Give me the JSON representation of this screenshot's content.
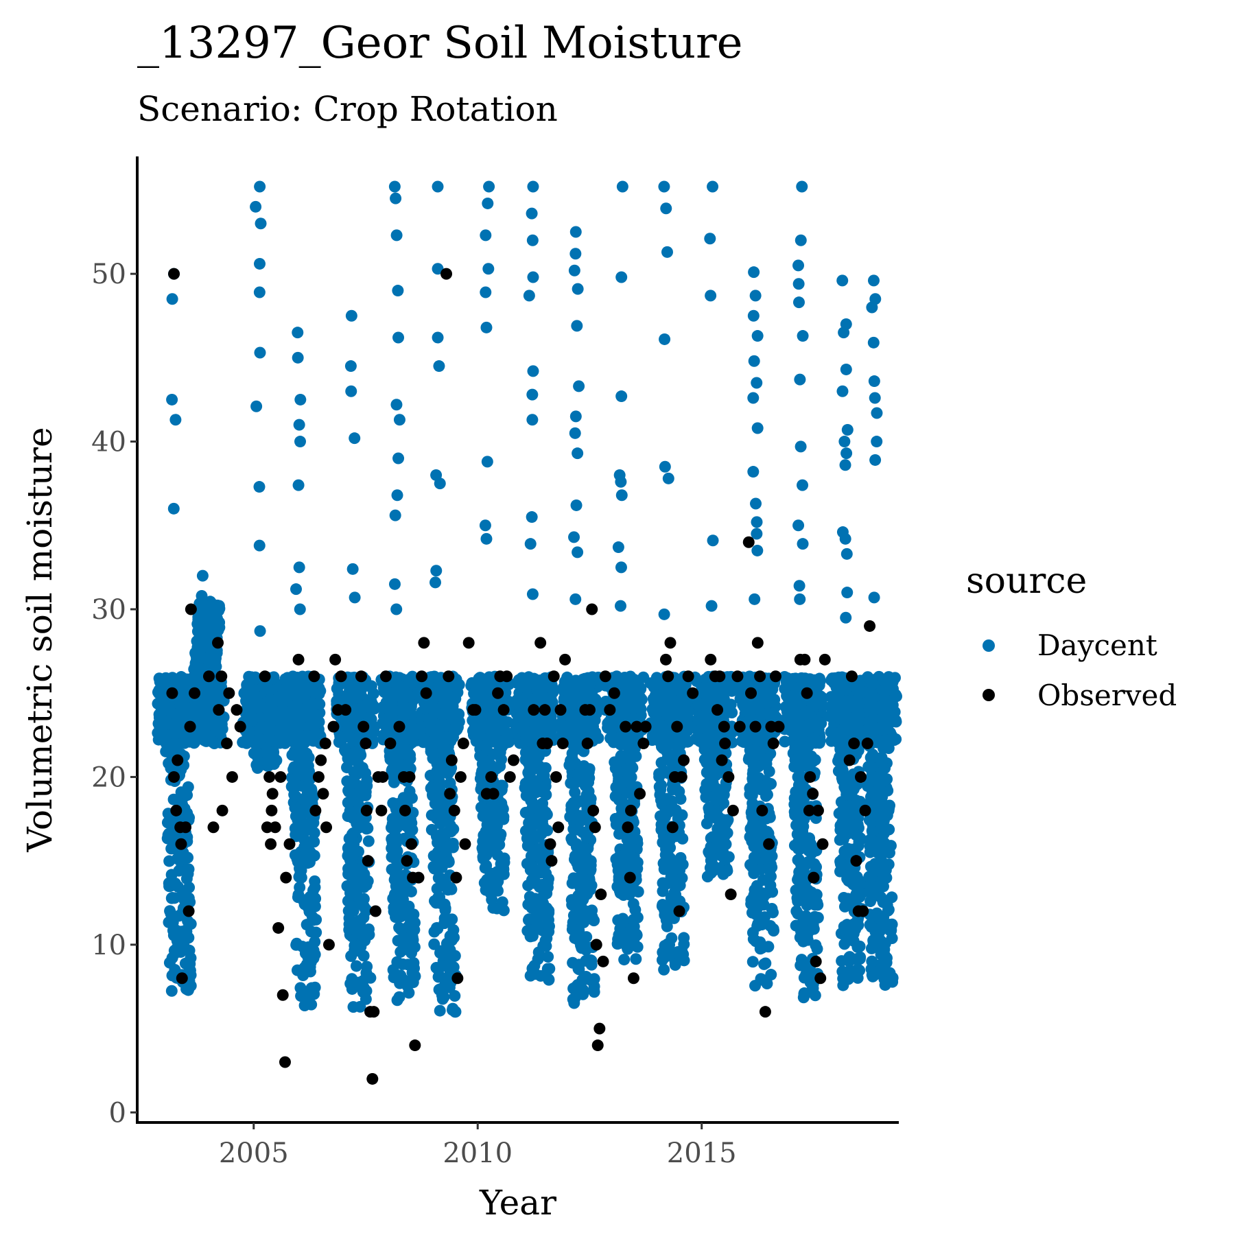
{
  "chart_data": {
    "type": "scatter",
    "title": "_13297_Geor Soil Moisture",
    "subtitle": "Scenario: Crop Rotation",
    "xlabel": "Year",
    "ylabel": "Volumetric soil moisture",
    "xlim": [
      2002.4,
      2019.4
    ],
    "ylim": [
      -0.6,
      57
    ],
    "x_ticks": [
      2005,
      2010,
      2015
    ],
    "y_ticks": [
      0,
      10,
      20,
      30,
      40,
      50
    ],
    "grid": false,
    "legend": {
      "title": "source",
      "position": "right"
    },
    "series": [
      {
        "name": "Daycent",
        "color": "#0072B2",
        "seasons": [
          {
            "year": 2003.2,
            "min": 7,
            "max": 50,
            "peaks": [
              50,
              48.5,
              42.5,
              41.3,
              36
            ]
          },
          {
            "year": 2003.85,
            "min": 30.5,
            "max": 32,
            "peaks": [
              32,
              30.8
            ]
          },
          {
            "year": 2005.1,
            "min": 20.5,
            "max": 55.2,
            "peaks": [
              55.2,
              54,
              53,
              50.6,
              48.9,
              45.3,
              42.1,
              37.3,
              33.8,
              28.7
            ]
          },
          {
            "year": 2006.0,
            "min": 6,
            "max": 46.5,
            "peaks": [
              46.5,
              45,
              42.5,
              41,
              40,
              37.4,
              32.5,
              31.2,
              30
            ]
          },
          {
            "year": 2007.2,
            "min": 6,
            "max": 47.5,
            "peaks": [
              47.5,
              44.5,
              43,
              40.2,
              32.4,
              30.7
            ]
          },
          {
            "year": 2008.2,
            "min": 6.5,
            "max": 55.2,
            "peaks": [
              55.2,
              54.5,
              52.3,
              49,
              46.2,
              42.2,
              41.3,
              39,
              36.8,
              35.6,
              31.5,
              30
            ]
          },
          {
            "year": 2009.1,
            "min": 5.8,
            "max": 55.2,
            "peaks": [
              55.2,
              50.3,
              46.2,
              44.5,
              38,
              37.5,
              32.3,
              31.6
            ]
          },
          {
            "year": 2010.2,
            "min": 12,
            "max": 55.2,
            "peaks": [
              55.2,
              54.2,
              52.3,
              50.3,
              48.9,
              46.8,
              38.8,
              35,
              34.2
            ]
          },
          {
            "year": 2011.2,
            "min": 7.5,
            "max": 55.2,
            "peaks": [
              55.2,
              53.6,
              52,
              49.8,
              48.7,
              44.2,
              42.8,
              41.3,
              35.5,
              33.9,
              30.9
            ]
          },
          {
            "year": 2012.2,
            "min": 6,
            "max": 52.5,
            "peaks": [
              52.5,
              51.2,
              50.2,
              49.1,
              46.9,
              43.3,
              41.5,
              40.5,
              39.3,
              36.2,
              34.3,
              33.4,
              30.6
            ]
          },
          {
            "year": 2013.2,
            "min": 9,
            "max": 55.2,
            "peaks": [
              55.2,
              49.8,
              42.7,
              38,
              37.6,
              36.8,
              33.7,
              32.5,
              30.2
            ]
          },
          {
            "year": 2014.2,
            "min": 8.5,
            "max": 55.2,
            "peaks": [
              55.2,
              53.9,
              51.3,
              46.1,
              38.5,
              37.8,
              29.7
            ]
          },
          {
            "year": 2015.2,
            "min": 14,
            "max": 55.2,
            "peaks": [
              55.2,
              52.1,
              48.7,
              34.1,
              30.2
            ]
          },
          {
            "year": 2016.2,
            "min": 7.5,
            "max": 50.1,
            "peaks": [
              50.1,
              48.7,
              47.5,
              46.3,
              44.8,
              43.5,
              42.6,
              40.8,
              38.2,
              36.3,
              35.2,
              34.5,
              33.5,
              30.6
            ]
          },
          {
            "year": 2017.2,
            "min": 6.8,
            "max": 55.2,
            "peaks": [
              55.2,
              52,
              50.5,
              49.4,
              48.3,
              46.3,
              43.7,
              39.7,
              37.4,
              35,
              33.9,
              31.4,
              30.6
            ]
          },
          {
            "year": 2018.2,
            "min": 7.5,
            "max": 49.6,
            "peaks": [
              49.6,
              47,
              46.5,
              44.3,
              43,
              40.7,
              40,
              39.3,
              38.6,
              34.6,
              34.2,
              33.3,
              31,
              29.5
            ]
          },
          {
            "year": 2018.85,
            "min": 7.5,
            "max": 49.6,
            "peaks": [
              49.6,
              48.5,
              48,
              45.9,
              43.6,
              42.6,
              41.7,
              40,
              38.9,
              30.7
            ]
          }
        ]
      },
      {
        "name": "Observed",
        "color": "#000000",
        "points": [
          [
            2003.22,
            50
          ],
          [
            2003.18,
            25
          ],
          [
            2003.22,
            20
          ],
          [
            2003.27,
            18
          ],
          [
            2003.3,
            21
          ],
          [
            2003.36,
            17
          ],
          [
            2003.38,
            16
          ],
          [
            2003.4,
            8
          ],
          [
            2003.48,
            17
          ],
          [
            2003.55,
            12
          ],
          [
            2003.58,
            23
          ],
          [
            2003.6,
            30
          ],
          [
            2003.68,
            25
          ],
          [
            2004.0,
            26
          ],
          [
            2004.1,
            17
          ],
          [
            2004.2,
            28
          ],
          [
            2004.22,
            24
          ],
          [
            2004.28,
            26
          ],
          [
            2004.3,
            18
          ],
          [
            2004.4,
            22
          ],
          [
            2004.45,
            25
          ],
          [
            2004.52,
            20
          ],
          [
            2004.62,
            24
          ],
          [
            2004.7,
            23
          ],
          [
            2005.25,
            26
          ],
          [
            2005.3,
            17
          ],
          [
            2005.35,
            20
          ],
          [
            2005.38,
            16
          ],
          [
            2005.4,
            18
          ],
          [
            2005.42,
            19
          ],
          [
            2005.48,
            17
          ],
          [
            2005.55,
            11
          ],
          [
            2005.6,
            20
          ],
          [
            2005.65,
            7
          ],
          [
            2005.7,
            3
          ],
          [
            2005.72,
            14
          ],
          [
            2005.8,
            16
          ],
          [
            2006.0,
            27
          ],
          [
            2006.35,
            26
          ],
          [
            2006.38,
            18
          ],
          [
            2006.45,
            20
          ],
          [
            2006.5,
            21
          ],
          [
            2006.55,
            19
          ],
          [
            2006.6,
            22
          ],
          [
            2006.62,
            17
          ],
          [
            2006.68,
            10
          ],
          [
            2006.78,
            23
          ],
          [
            2006.82,
            27
          ],
          [
            2006.88,
            24
          ],
          [
            2006.95,
            26
          ],
          [
            2007.05,
            24
          ],
          [
            2007.4,
            26
          ],
          [
            2007.45,
            23
          ],
          [
            2007.5,
            22
          ],
          [
            2007.52,
            18
          ],
          [
            2007.55,
            15
          ],
          [
            2007.6,
            6
          ],
          [
            2007.65,
            2
          ],
          [
            2007.68,
            6
          ],
          [
            2007.72,
            12
          ],
          [
            2007.78,
            20
          ],
          [
            2007.85,
            18
          ],
          [
            2007.88,
            20
          ],
          [
            2007.95,
            26
          ],
          [
            2008.05,
            22
          ],
          [
            2008.25,
            23
          ],
          [
            2008.35,
            20
          ],
          [
            2008.38,
            18
          ],
          [
            2008.42,
            15
          ],
          [
            2008.48,
            20
          ],
          [
            2008.52,
            16
          ],
          [
            2008.55,
            14
          ],
          [
            2008.6,
            4
          ],
          [
            2008.68,
            14
          ],
          [
            2008.75,
            26
          ],
          [
            2008.8,
            28
          ],
          [
            2008.85,
            25
          ],
          [
            2009.3,
            50
          ],
          [
            2009.35,
            26
          ],
          [
            2009.38,
            19
          ],
          [
            2009.42,
            21
          ],
          [
            2009.48,
            18
          ],
          [
            2009.52,
            14
          ],
          [
            2009.55,
            8
          ],
          [
            2009.62,
            20
          ],
          [
            2009.68,
            22
          ],
          [
            2009.72,
            16
          ],
          [
            2009.8,
            28
          ],
          [
            2009.9,
            24
          ],
          [
            2009.95,
            24
          ],
          [
            2010.2,
            19
          ],
          [
            2010.3,
            20
          ],
          [
            2010.35,
            19
          ],
          [
            2010.45,
            25
          ],
          [
            2010.5,
            26
          ],
          [
            2010.58,
            24
          ],
          [
            2010.65,
            26
          ],
          [
            2010.72,
            20
          ],
          [
            2010.8,
            21
          ],
          [
            2011.25,
            24
          ],
          [
            2011.4,
            28
          ],
          [
            2011.45,
            22
          ],
          [
            2011.5,
            24
          ],
          [
            2011.55,
            22
          ],
          [
            2011.62,
            16
          ],
          [
            2011.65,
            15
          ],
          [
            2011.7,
            26
          ],
          [
            2011.75,
            20
          ],
          [
            2011.8,
            17
          ],
          [
            2011.85,
            24
          ],
          [
            2011.9,
            22
          ],
          [
            2011.95,
            27
          ],
          [
            2012.4,
            24
          ],
          [
            2012.45,
            22
          ],
          [
            2012.5,
            24
          ],
          [
            2012.55,
            30
          ],
          [
            2012.58,
            18
          ],
          [
            2012.62,
            17
          ],
          [
            2012.65,
            10
          ],
          [
            2012.68,
            4
          ],
          [
            2012.72,
            5
          ],
          [
            2012.75,
            13
          ],
          [
            2012.8,
            9
          ],
          [
            2012.85,
            26
          ],
          [
            2012.95,
            24
          ],
          [
            2013.05,
            25
          ],
          [
            2013.3,
            23
          ],
          [
            2013.35,
            17
          ],
          [
            2013.4,
            14
          ],
          [
            2013.42,
            18
          ],
          [
            2013.48,
            8
          ],
          [
            2013.55,
            23
          ],
          [
            2013.62,
            19
          ],
          [
            2013.7,
            22
          ],
          [
            2013.75,
            23
          ],
          [
            2014.2,
            27
          ],
          [
            2014.25,
            26
          ],
          [
            2014.3,
            28
          ],
          [
            2014.35,
            17
          ],
          [
            2014.4,
            20
          ],
          [
            2014.45,
            23
          ],
          [
            2014.5,
            12
          ],
          [
            2014.55,
            20
          ],
          [
            2014.6,
            21
          ],
          [
            2014.7,
            26
          ],
          [
            2014.8,
            25
          ],
          [
            2015.2,
            27
          ],
          [
            2015.3,
            26
          ],
          [
            2015.35,
            24
          ],
          [
            2015.4,
            26
          ],
          [
            2015.45,
            21
          ],
          [
            2015.5,
            23
          ],
          [
            2015.52,
            22
          ],
          [
            2015.6,
            20
          ],
          [
            2015.65,
            13
          ],
          [
            2015.7,
            18
          ],
          [
            2015.8,
            26
          ],
          [
            2015.85,
            23
          ],
          [
            2016.05,
            34
          ],
          [
            2016.1,
            25
          ],
          [
            2016.2,
            23
          ],
          [
            2016.25,
            28
          ],
          [
            2016.3,
            26
          ],
          [
            2016.35,
            18
          ],
          [
            2016.42,
            6
          ],
          [
            2016.5,
            16
          ],
          [
            2016.55,
            23
          ],
          [
            2016.6,
            22
          ],
          [
            2016.65,
            26
          ],
          [
            2016.72,
            23
          ],
          [
            2017.2,
            27
          ],
          [
            2017.3,
            27
          ],
          [
            2017.35,
            25
          ],
          [
            2017.4,
            18
          ],
          [
            2017.42,
            20
          ],
          [
            2017.48,
            19
          ],
          [
            2017.5,
            14
          ],
          [
            2017.55,
            9
          ],
          [
            2017.6,
            18
          ],
          [
            2017.65,
            8
          ],
          [
            2017.7,
            16
          ],
          [
            2017.75,
            27
          ],
          [
            2018.3,
            21
          ],
          [
            2018.35,
            26
          ],
          [
            2018.4,
            22
          ],
          [
            2018.45,
            15
          ],
          [
            2018.5,
            12
          ],
          [
            2018.55,
            20
          ],
          [
            2018.6,
            12
          ],
          [
            2018.65,
            18
          ],
          [
            2018.7,
            22
          ],
          [
            2018.75,
            29
          ]
        ]
      }
    ]
  }
}
